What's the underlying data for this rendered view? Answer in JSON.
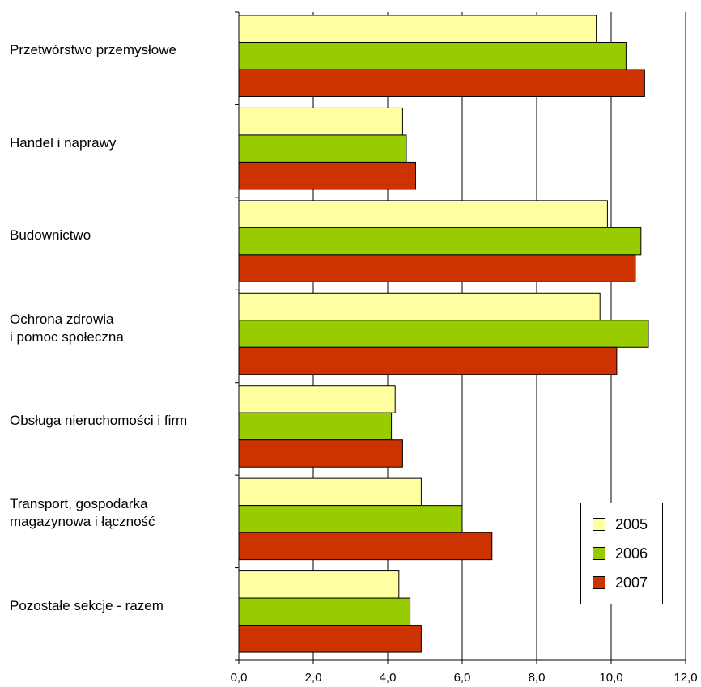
{
  "chart_data": {
    "type": "bar",
    "orientation": "horizontal",
    "categories": [
      "Przetwórstwo przemysłowe",
      "Handel i naprawy",
      "Budownictwo",
      "Ochrona zdrowia\ni pomoc społeczna",
      "Obsługa nieruchomości i firm",
      "Transport, gospodarka\nmagazynowa i łączność",
      "Pozostałe sekcje - razem"
    ],
    "series": [
      {
        "name": "2005",
        "color": "#ffffa0",
        "values": [
          9.6,
          4.4,
          9.9,
          9.7,
          4.2,
          4.9,
          4.3
        ]
      },
      {
        "name": "2006",
        "color": "#99cc00",
        "values": [
          10.4,
          4.5,
          10.8,
          11.0,
          4.1,
          6.0,
          4.6
        ]
      },
      {
        "name": "2007",
        "color": "#cc3300",
        "values": [
          10.9,
          4.75,
          10.65,
          10.15,
          4.4,
          6.8,
          4.9
        ]
      }
    ],
    "xlim": [
      0,
      12
    ],
    "xticks": [
      "0,0",
      "2,0",
      "4,0",
      "6,0",
      "8,0",
      "10,0",
      "12,0"
    ],
    "grid": true,
    "legend_position": "bottom-right"
  }
}
